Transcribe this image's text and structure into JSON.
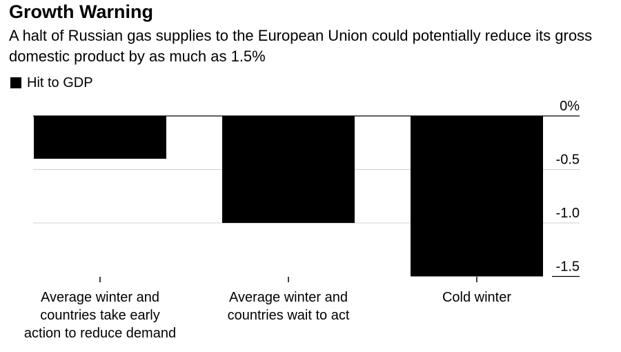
{
  "title": "Growth Warning",
  "subtitle": "A halt of Russian gas supplies to the European Union could potentially reduce its gross domestic product by as much as 1.5%",
  "legend": {
    "label": "Hit to GDP"
  },
  "chart_data": {
    "type": "bar",
    "title": "Growth Warning",
    "subtitle": "A halt of Russian gas supplies to the European Union could potentially reduce its gross domestic product by as much as 1.5%",
    "categories": [
      "Average winter and\ncountries take early\naction to reduce demand",
      "Average winter and\ncountries wait to act",
      "Cold winter"
    ],
    "series": [
      {
        "name": "Hit to GDP",
        "values": [
          -0.4,
          -1.0,
          -1.5
        ],
        "color": "#000000"
      }
    ],
    "ylim": [
      -1.5,
      0
    ],
    "yticks": [
      0,
      -0.5,
      -1.0,
      -1.5
    ],
    "ytick_labels": [
      "0%",
      "-0.5",
      "-1.0",
      "-1.5"
    ],
    "grid": true,
    "legend_position": "top-left",
    "xlabel": "",
    "ylabel": ""
  }
}
